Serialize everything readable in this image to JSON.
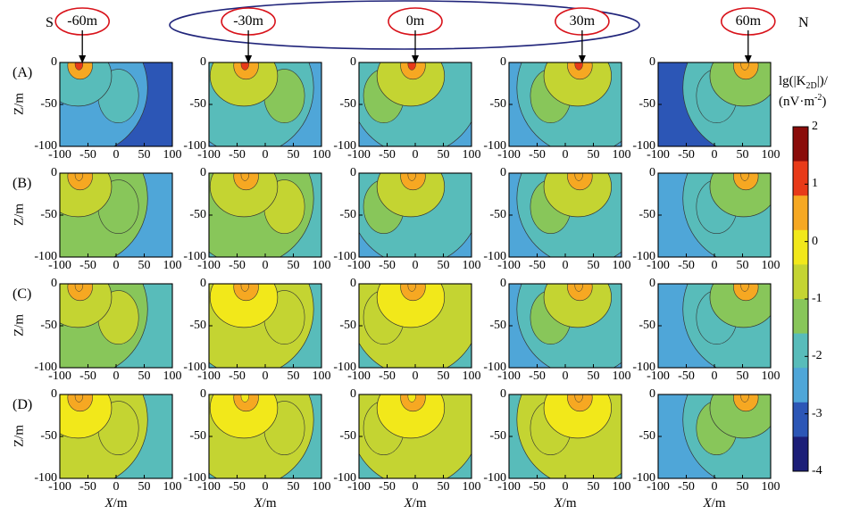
{
  "chart_data": {
    "type": "heatmap",
    "direction_labels": {
      "south": "S",
      "north": "N"
    },
    "columns": [
      "-60m",
      "-30m",
      "0m",
      "30m",
      "60m"
    ],
    "column_offsets_m": [
      -60,
      -30,
      0,
      30,
      60
    ],
    "rows": [
      "(A)",
      "(B)",
      "(C)",
      "(D)"
    ],
    "xlabel": {
      "var": "X",
      "unit": "/m"
    },
    "ylabel": "Z/m",
    "xlim": [
      -100,
      100
    ],
    "ylim": [
      -100,
      0
    ],
    "xticks": [
      "-100",
      "-50",
      "0",
      "50",
      "100"
    ],
    "yticks": [
      "0",
      "-50",
      "-100"
    ],
    "colorbar": {
      "title_line1": "lg(|K",
      "title_sub": "2D",
      "title_line1_end": "|)/",
      "title_line2": "(nV·m",
      "title_sup": "-2",
      "title_line2_end": ")",
      "min": -4,
      "max": 2,
      "ticks": [
        "2",
        "1",
        "0",
        "-1",
        "-2",
        "-3",
        "-4"
      ],
      "colors": [
        "#1c1e78",
        "#2c56b6",
        "#4fa6d8",
        "#58bcba",
        "#88c65a",
        "#c4d432",
        "#f2e81a",
        "#f6a822",
        "#e83a18",
        "#8a0c0a"
      ]
    },
    "panel_levels": [
      [
        [
          1.2,
          -1.6,
          -2.4
        ],
        [
          1.0,
          -1.0,
          -1.8
        ],
        [
          1.0,
          -0.8,
          -1.6
        ],
        [
          0.9,
          -1.0,
          -1.7
        ],
        [
          0.8,
          -1.3,
          -2.2
        ]
      ],
      [
        [
          0.6,
          -0.8,
          -1.5
        ],
        [
          0.4,
          -0.5,
          -1.2
        ],
        [
          0.8,
          -0.8,
          -1.6
        ],
        [
          0.8,
          -0.9,
          -1.7
        ],
        [
          0.5,
          -1.1,
          -2.0
        ]
      ],
      [
        [
          0.3,
          -0.5,
          -1.2
        ],
        [
          0.2,
          -0.3,
          -1.0
        ],
        [
          0.3,
          -0.3,
          -1.0
        ],
        [
          0.6,
          -1.0,
          -1.6
        ],
        [
          0.4,
          -1.3,
          -2.0
        ]
      ],
      [
        [
          0.2,
          -0.2,
          -0.9
        ],
        [
          0.1,
          -0.2,
          -0.8
        ],
        [
          0.1,
          -0.2,
          -0.8
        ],
        [
          0.2,
          -0.3,
          -1.0
        ],
        [
          0.3,
          -1.2,
          -1.9
        ]
      ]
    ]
  }
}
